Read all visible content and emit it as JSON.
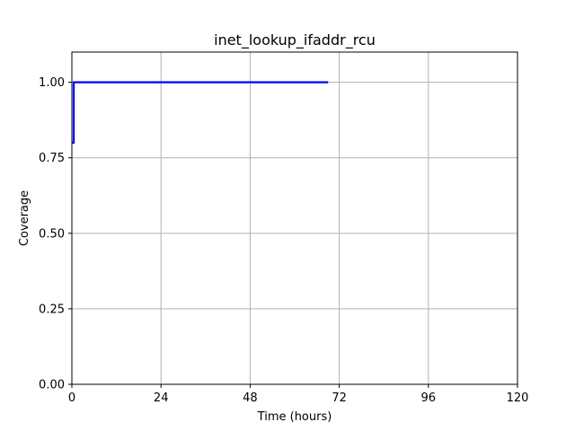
{
  "chart_data": {
    "type": "line",
    "title": "inet_lookup_ifaddr_rcu",
    "xlabel": "Time (hours)",
    "ylabel": "Coverage",
    "xlim": [
      0,
      120
    ],
    "ylim": [
      0,
      1.1
    ],
    "xticks": [
      0,
      24,
      48,
      72,
      96,
      120
    ],
    "xtick_labels": [
      "0",
      "24",
      "48",
      "72",
      "96",
      "120"
    ],
    "yticks": [
      0,
      0.25,
      0.5,
      0.75,
      1.0
    ],
    "ytick_labels": [
      "0.00",
      "0.25",
      "0.50",
      "0.75",
      "1.00"
    ],
    "grid": true,
    "series": [
      {
        "color": "#0000ff",
        "x": [
          0.1,
          0.5,
          0.5,
          69
        ],
        "y": [
          0.8,
          0.8,
          1.0,
          1.0
        ]
      }
    ]
  }
}
